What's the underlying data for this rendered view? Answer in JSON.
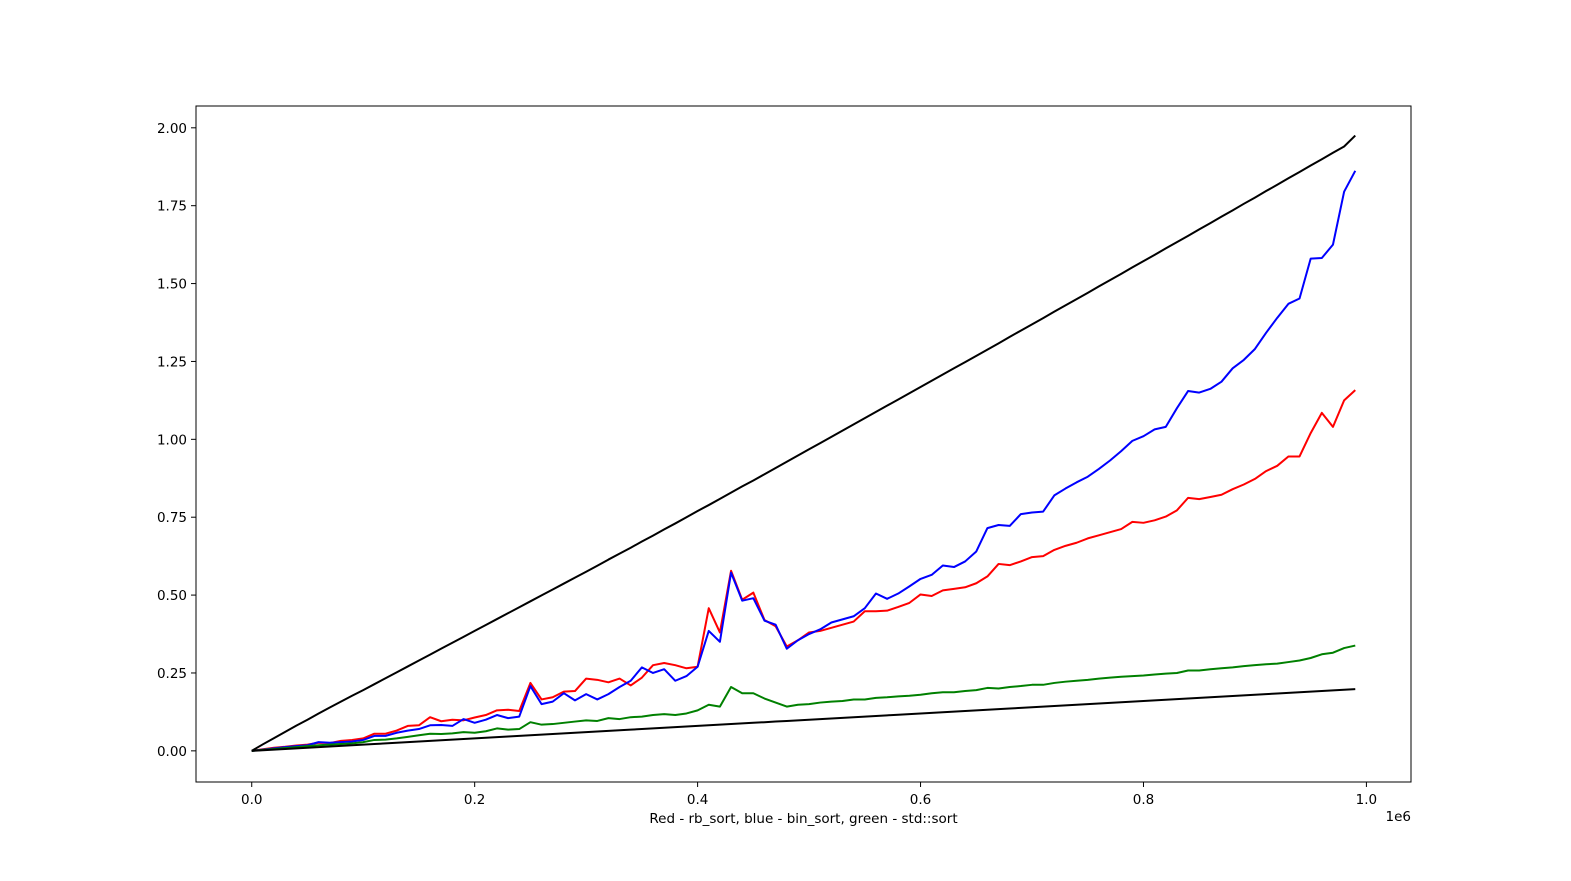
{
  "chart_data": {
    "type": "line",
    "title": "",
    "xlabel": "Red - rb_sort, blue - bin_sort, green - std::sort",
    "ylabel": "",
    "x_offset_label": "1e6",
    "xlim": [
      -50000,
      1040000
    ],
    "ylim": [
      -0.1,
      2.07
    ],
    "x_ticks": [
      0,
      200000,
      400000,
      600000,
      800000,
      1000000
    ],
    "x_tick_labels": [
      "0.0",
      "0.2",
      "0.4",
      "0.6",
      "0.8",
      "1.0"
    ],
    "y_ticks": [
      0,
      0.25,
      0.5,
      0.75,
      1.0,
      1.25,
      1.5,
      1.75,
      2.0
    ],
    "y_tick_labels": [
      "0.00",
      "0.25",
      "0.50",
      "0.75",
      "1.00",
      "1.25",
      "1.50",
      "1.75",
      "2.00"
    ],
    "grid": false,
    "legend": "none",
    "x": [
      0,
      10000,
      20000,
      30000,
      40000,
      50000,
      60000,
      70000,
      80000,
      90000,
      100000,
      110000,
      120000,
      130000,
      140000,
      150000,
      160000,
      170000,
      180000,
      190000,
      200000,
      210000,
      220000,
      230000,
      240000,
      250000,
      260000,
      270000,
      280000,
      290000,
      300000,
      310000,
      320000,
      330000,
      340000,
      350000,
      360000,
      370000,
      380000,
      390000,
      400000,
      410000,
      420000,
      430000,
      440000,
      450000,
      460000,
      470000,
      480000,
      490000,
      500000,
      510000,
      520000,
      530000,
      540000,
      550000,
      560000,
      570000,
      580000,
      590000,
      600000,
      610000,
      620000,
      630000,
      640000,
      650000,
      660000,
      670000,
      680000,
      690000,
      700000,
      710000,
      720000,
      730000,
      740000,
      750000,
      760000,
      770000,
      780000,
      790000,
      800000,
      810000,
      820000,
      830000,
      840000,
      850000,
      860000,
      870000,
      880000,
      890000,
      900000,
      910000,
      920000,
      930000,
      940000,
      950000,
      960000,
      970000,
      980000,
      990000
    ],
    "series": [
      {
        "color": "#ff0000",
        "values": [
          0,
          0.005,
          0.01,
          0.013,
          0.017,
          0.02,
          0.026,
          0.025,
          0.032,
          0.035,
          0.04,
          0.055,
          0.055,
          0.065,
          0.08,
          0.082,
          0.108,
          0.095,
          0.1,
          0.098,
          0.107,
          0.115,
          0.13,
          0.132,
          0.128,
          0.218,
          0.165,
          0.172,
          0.19,
          0.192,
          0.232,
          0.228,
          0.22,
          0.232,
          0.21,
          0.235,
          0.275,
          0.282,
          0.275,
          0.265,
          0.27,
          0.458,
          0.38,
          0.578,
          0.485,
          0.508,
          0.42,
          0.4,
          0.335,
          0.355,
          0.38,
          0.385,
          0.395,
          0.405,
          0.415,
          0.448,
          0.448,
          0.45,
          0.462,
          0.475,
          0.502,
          0.497,
          0.515,
          0.52,
          0.525,
          0.538,
          0.56,
          0.6,
          0.596,
          0.608,
          0.622,
          0.625,
          0.645,
          0.658,
          0.668,
          0.682,
          0.692,
          0.702,
          0.712,
          0.735,
          0.732,
          0.74,
          0.752,
          0.772,
          0.812,
          0.808,
          0.815,
          0.822,
          0.84,
          0.855,
          0.873,
          0.898,
          0.915,
          0.945,
          0.945,
          1.02,
          1.085,
          1.04,
          1.125,
          1.158
        ]
      },
      {
        "color": "#0000ff",
        "values": [
          0,
          0.004,
          0.008,
          0.012,
          0.015,
          0.018,
          0.028,
          0.026,
          0.028,
          0.03,
          0.035,
          0.048,
          0.048,
          0.058,
          0.065,
          0.07,
          0.082,
          0.083,
          0.08,
          0.102,
          0.09,
          0.1,
          0.115,
          0.105,
          0.11,
          0.208,
          0.15,
          0.158,
          0.185,
          0.162,
          0.182,
          0.165,
          0.182,
          0.205,
          0.225,
          0.268,
          0.25,
          0.262,
          0.225,
          0.24,
          0.27,
          0.385,
          0.35,
          0.572,
          0.482,
          0.49,
          0.418,
          0.405,
          0.328,
          0.355,
          0.375,
          0.39,
          0.412,
          0.422,
          0.432,
          0.458,
          0.505,
          0.488,
          0.505,
          0.528,
          0.552,
          0.565,
          0.595,
          0.59,
          0.608,
          0.64,
          0.715,
          0.725,
          0.722,
          0.76,
          0.765,
          0.768,
          0.82,
          0.842,
          0.862,
          0.88,
          0.905,
          0.932,
          0.962,
          0.995,
          1.01,
          1.032,
          1.04,
          1.1,
          1.155,
          1.15,
          1.162,
          1.185,
          1.228,
          1.255,
          1.29,
          1.342,
          1.39,
          1.435,
          1.452,
          1.58,
          1.582,
          1.625,
          1.795,
          1.862
        ]
      },
      {
        "color": "#008000",
        "values": [
          0,
          0.003,
          0.006,
          0.009,
          0.012,
          0.015,
          0.018,
          0.02,
          0.022,
          0.024,
          0.028,
          0.035,
          0.036,
          0.04,
          0.045,
          0.05,
          0.055,
          0.054,
          0.056,
          0.06,
          0.058,
          0.063,
          0.072,
          0.068,
          0.07,
          0.092,
          0.084,
          0.086,
          0.09,
          0.094,
          0.098,
          0.096,
          0.105,
          0.102,
          0.108,
          0.11,
          0.115,
          0.118,
          0.115,
          0.12,
          0.13,
          0.148,
          0.142,
          0.205,
          0.185,
          0.185,
          0.168,
          0.155,
          0.142,
          0.148,
          0.15,
          0.155,
          0.158,
          0.16,
          0.165,
          0.165,
          0.17,
          0.172,
          0.175,
          0.177,
          0.18,
          0.185,
          0.188,
          0.188,
          0.192,
          0.195,
          0.202,
          0.2,
          0.205,
          0.208,
          0.212,
          0.212,
          0.218,
          0.222,
          0.225,
          0.228,
          0.232,
          0.235,
          0.238,
          0.24,
          0.242,
          0.245,
          0.248,
          0.25,
          0.258,
          0.258,
          0.262,
          0.265,
          0.268,
          0.272,
          0.275,
          0.278,
          0.28,
          0.285,
          0.29,
          0.298,
          0.31,
          0.315,
          0.33,
          0.338
        ]
      },
      {
        "color": "#000000",
        "values": [
          0,
          0.021,
          0.041,
          0.061,
          0.081,
          0.1,
          0.12,
          0.139,
          0.158,
          0.177,
          0.195,
          0.214,
          0.233,
          0.252,
          0.271,
          0.29,
          0.309,
          0.328,
          0.347,
          0.366,
          0.385,
          0.404,
          0.423,
          0.442,
          0.461,
          0.48,
          0.499,
          0.518,
          0.537,
          0.556,
          0.575,
          0.594,
          0.614,
          0.633,
          0.652,
          0.672,
          0.691,
          0.711,
          0.73,
          0.75,
          0.77,
          0.789,
          0.809,
          0.829,
          0.849,
          0.868,
          0.888,
          0.908,
          0.928,
          0.948,
          0.968,
          0.988,
          1.008,
          1.028,
          1.048,
          1.068,
          1.088,
          1.108,
          1.128,
          1.148,
          1.168,
          1.188,
          1.208,
          1.228,
          1.248,
          1.268,
          1.288,
          1.308,
          1.329,
          1.349,
          1.369,
          1.389,
          1.41,
          1.43,
          1.45,
          1.47,
          1.491,
          1.511,
          1.531,
          1.552,
          1.572,
          1.592,
          1.613,
          1.633,
          1.653,
          1.674,
          1.694,
          1.715,
          1.735,
          1.756,
          1.776,
          1.797,
          1.817,
          1.838,
          1.858,
          1.879,
          1.899,
          1.92,
          1.94,
          1.975
        ]
      },
      {
        "color": "#000000",
        "values": [
          0,
          0.002,
          0.004,
          0.006,
          0.008,
          0.01,
          0.012,
          0.014,
          0.016,
          0.018,
          0.02,
          0.022,
          0.024,
          0.026,
          0.028,
          0.03,
          0.032,
          0.034,
          0.036,
          0.038,
          0.04,
          0.042,
          0.044,
          0.046,
          0.048,
          0.05,
          0.052,
          0.054,
          0.056,
          0.058,
          0.06,
          0.062,
          0.064,
          0.066,
          0.068,
          0.07,
          0.072,
          0.074,
          0.076,
          0.078,
          0.08,
          0.082,
          0.084,
          0.086,
          0.088,
          0.09,
          0.092,
          0.094,
          0.096,
          0.098,
          0.1,
          0.102,
          0.104,
          0.106,
          0.108,
          0.11,
          0.112,
          0.114,
          0.116,
          0.118,
          0.12,
          0.122,
          0.124,
          0.126,
          0.128,
          0.13,
          0.132,
          0.134,
          0.136,
          0.138,
          0.14,
          0.142,
          0.144,
          0.146,
          0.148,
          0.15,
          0.152,
          0.154,
          0.156,
          0.158,
          0.16,
          0.162,
          0.164,
          0.166,
          0.168,
          0.17,
          0.172,
          0.174,
          0.176,
          0.178,
          0.18,
          0.182,
          0.184,
          0.186,
          0.188,
          0.19,
          0.192,
          0.194,
          0.196,
          0.198
        ]
      }
    ]
  }
}
